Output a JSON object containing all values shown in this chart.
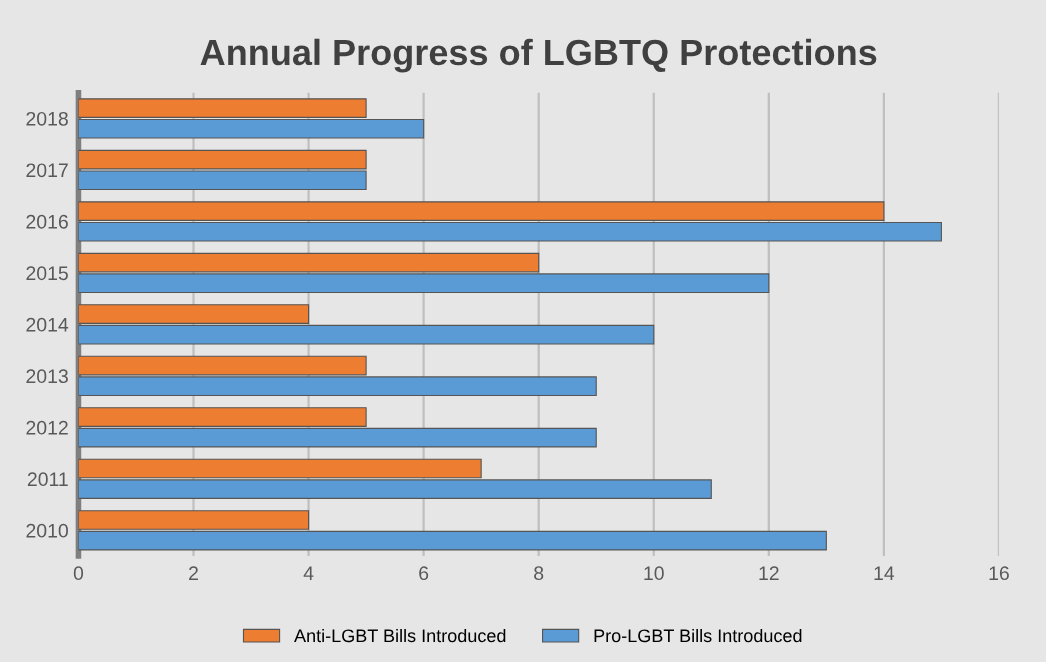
{
  "chart_data": {
    "type": "bar",
    "orientation": "horizontal",
    "title": "Annual Progress of LGBTQ Protections",
    "categories": [
      "2018",
      "2017",
      "2016",
      "2015",
      "2014",
      "2013",
      "2012",
      "2011",
      "2010"
    ],
    "series": [
      {
        "name": "Anti-LGBT Bills Introduced",
        "color": "#ed7d31",
        "values": [
          5,
          5,
          14,
          8,
          4,
          5,
          5,
          7,
          4
        ]
      },
      {
        "name": "Pro-LGBT Bills Introduced",
        "color": "#5b9bd5",
        "values": [
          6,
          5,
          15,
          12,
          10,
          9,
          9,
          11,
          13
        ]
      }
    ],
    "xlim": [
      0,
      16
    ],
    "xticks": [
      0,
      2,
      4,
      6,
      8,
      10,
      12,
      14,
      16
    ],
    "grid": "x",
    "legend": "bottom"
  }
}
